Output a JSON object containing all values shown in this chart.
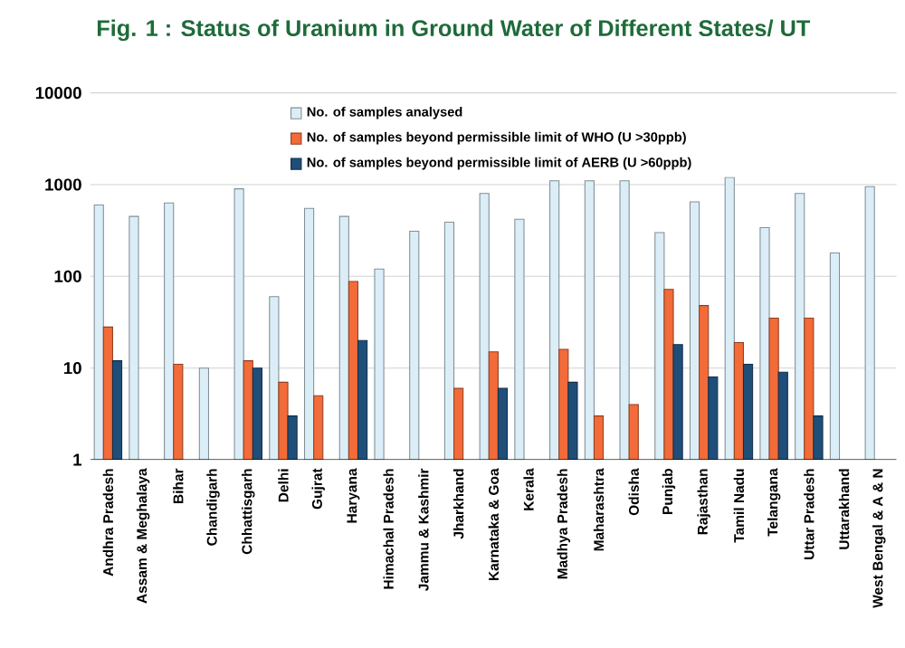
{
  "chart_data": {
    "type": "bar",
    "title": "Fig. 1 : Status of Uranium in Ground Water of Different States/ UT",
    "categories": [
      "Andhra Pradesh",
      "Assam & Meghalaya",
      "Bihar",
      "Chandigarh",
      "Chhattisgarh",
      "Delhi",
      "Gujrat",
      "Haryana",
      "Himachal Pradesh",
      "Jammu & Kashmir",
      "Jharkhand",
      "Karnataka & Goa",
      "Kerala",
      "Madhya Pradesh",
      "Maharashtra",
      "Odisha",
      "Punjab",
      "Rajasthan",
      "Tamil Nadu",
      "Telangana",
      "Uttar Pradesh",
      "Uttarakhand",
      "West Bengal & A & N"
    ],
    "series": [
      {
        "name": "No. of samples analysed",
        "color": "#dbeef7",
        "values": [
          600,
          450,
          630,
          10,
          900,
          60,
          550,
          450,
          120,
          310,
          390,
          800,
          420,
          1100,
          1100,
          1100,
          300,
          650,
          1200,
          340,
          800,
          180,
          950
        ]
      },
      {
        "name": "No. of samples beyond permissible limit of WHO  (U >30ppb)",
        "color": "#f26b38",
        "values": [
          28,
          null,
          11,
          null,
          12,
          7,
          5,
          88,
          null,
          null,
          6,
          15,
          null,
          16,
          3,
          4,
          72,
          48,
          19,
          35,
          35,
          null,
          null
        ]
      },
      {
        "name": "No. of samples beyond permissible limit of AERB  (U >60ppb)",
        "color": "#1f4e79",
        "values": [
          12,
          null,
          null,
          null,
          10,
          3,
          null,
          20,
          null,
          null,
          null,
          6,
          null,
          7,
          null,
          null,
          18,
          8,
          11,
          9,
          3,
          null,
          null
        ]
      }
    ],
    "log": "y",
    "ylim": [
      1,
      10000
    ],
    "yticks": [
      1,
      10,
      100,
      1000,
      10000
    ],
    "grid": "y",
    "legend": "top"
  }
}
